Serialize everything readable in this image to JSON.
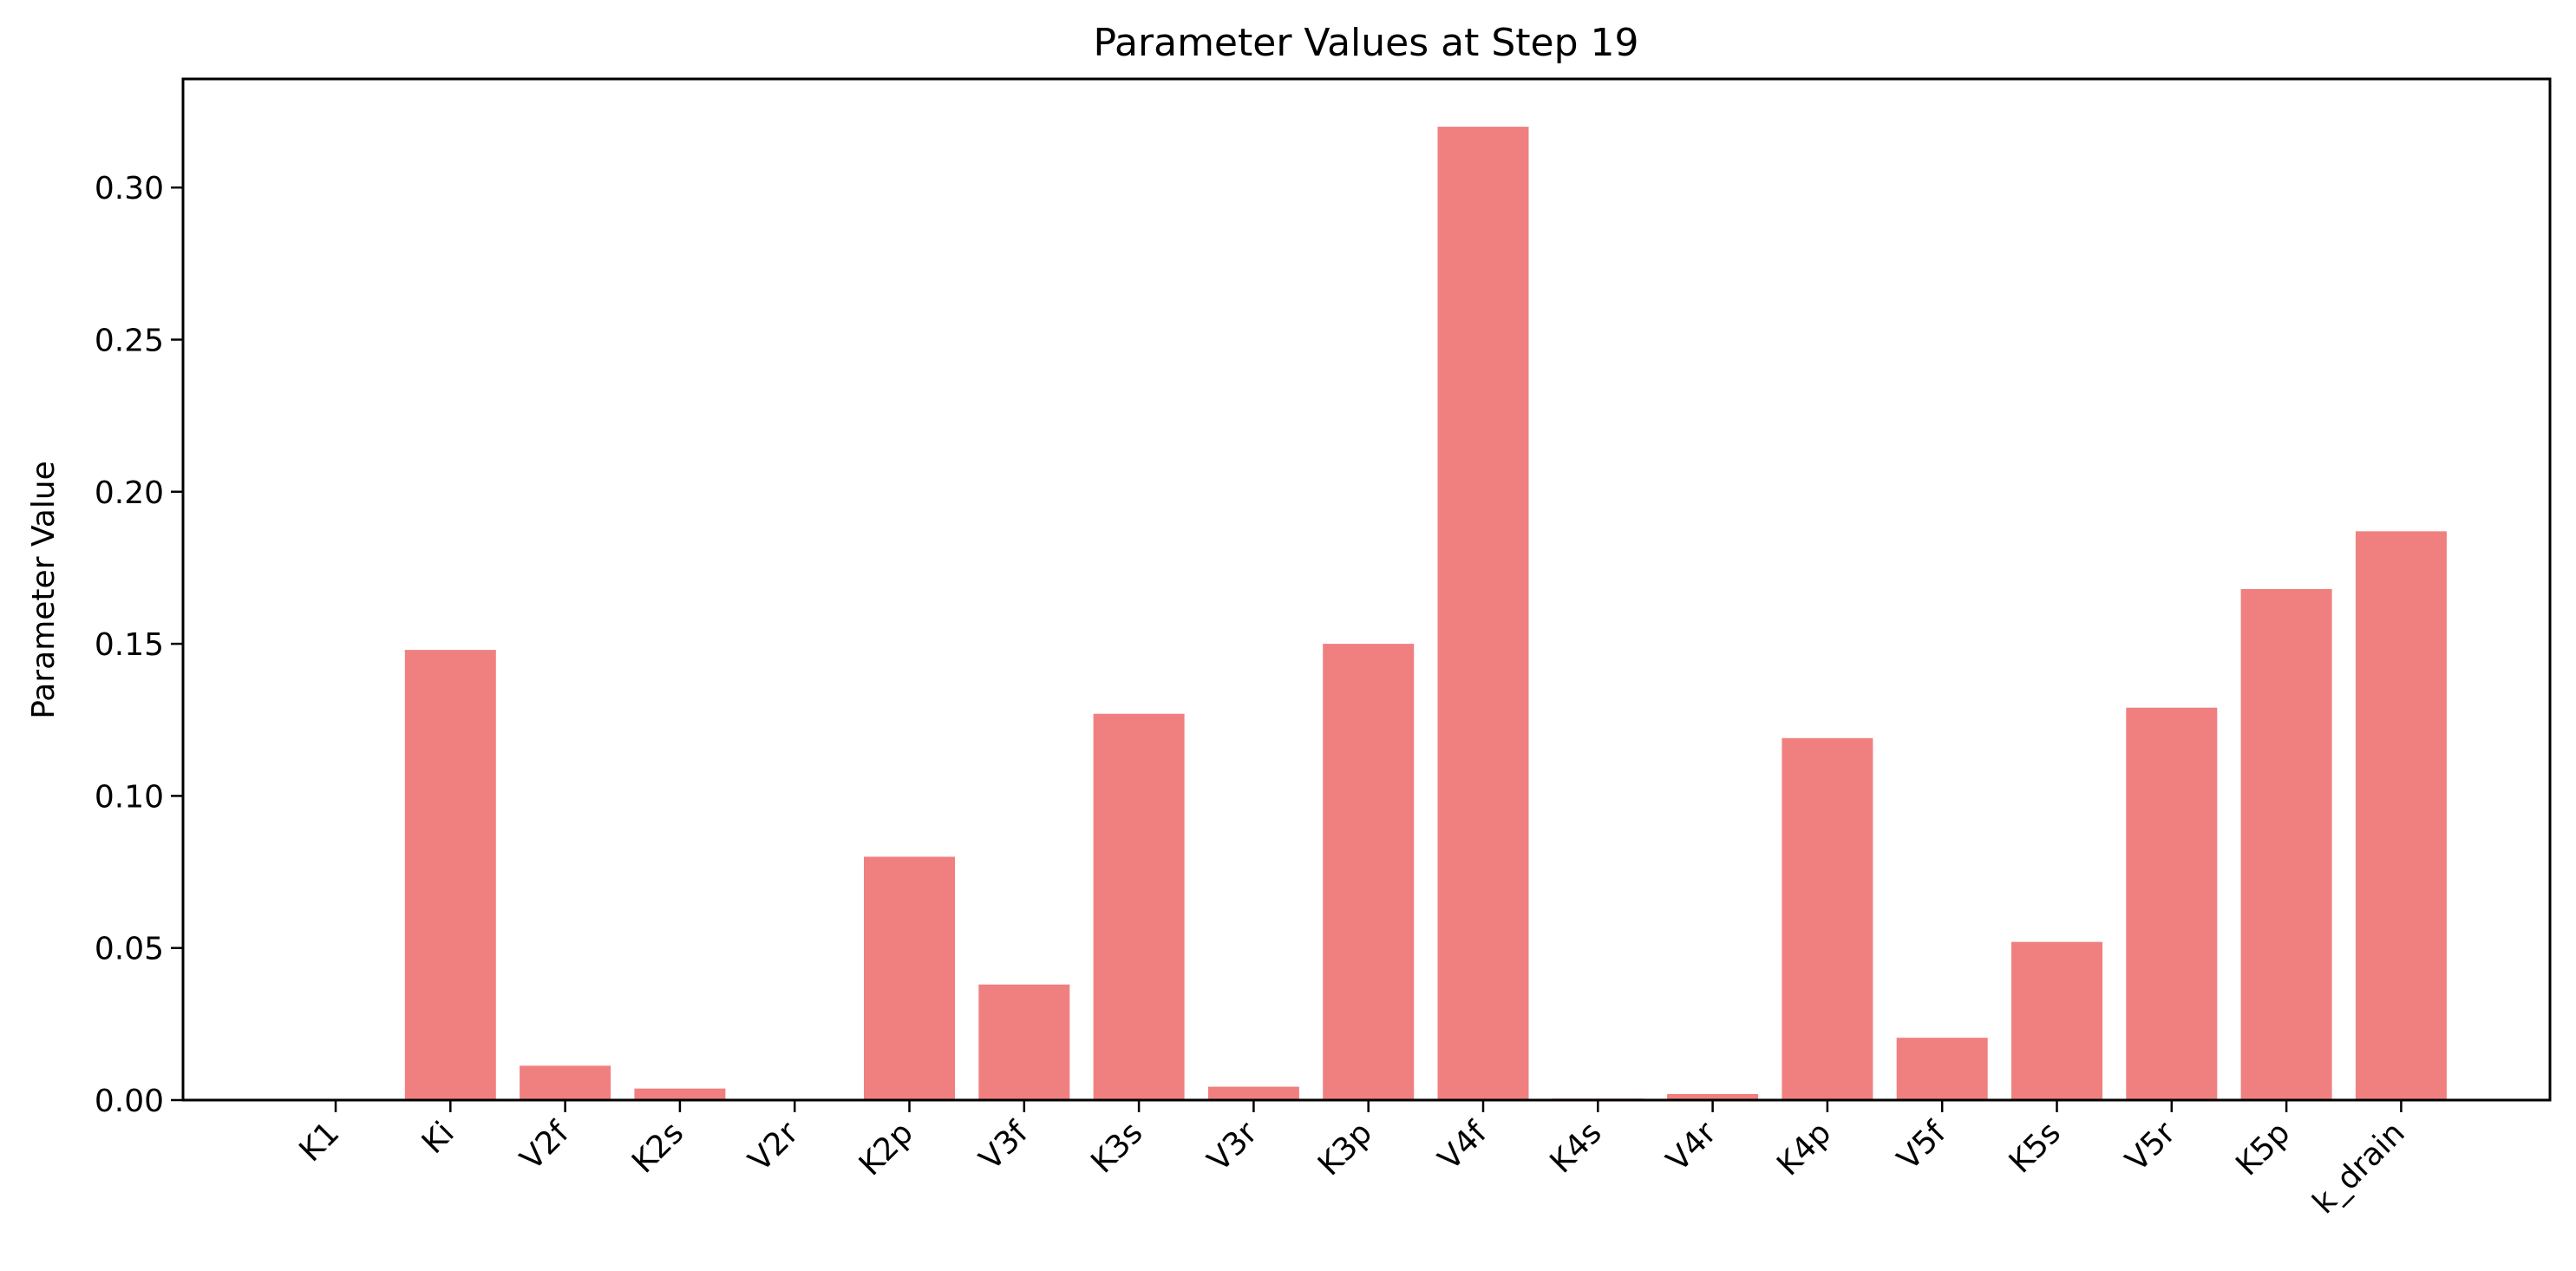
{
  "chart_data": {
    "type": "bar",
    "title": "Parameter Values at Step 19",
    "xlabel": "",
    "ylabel": "Parameter Value",
    "categories": [
      "K1",
      "Ki",
      "V2f",
      "K2s",
      "V2r",
      "K2p",
      "V3f",
      "K3s",
      "V3r",
      "K3p",
      "V4f",
      "K4s",
      "V4r",
      "K4p",
      "V5f",
      "K5s",
      "V5r",
      "K5p",
      "k_drain"
    ],
    "values": [
      0.0,
      0.148,
      0.0113,
      0.0038,
      0.0,
      0.08,
      0.038,
      0.127,
      0.0044,
      0.15,
      0.32,
      0.0005,
      0.002,
      0.119,
      0.0205,
      0.052,
      0.129,
      0.168,
      0.187
    ],
    "ylim": [
      0,
      0.3357
    ],
    "yticks": [
      "0.00",
      "0.05",
      "0.10",
      "0.15",
      "0.20",
      "0.25",
      "0.30"
    ],
    "bar_color": "#f08080",
    "grid": false,
    "legend": "none"
  }
}
